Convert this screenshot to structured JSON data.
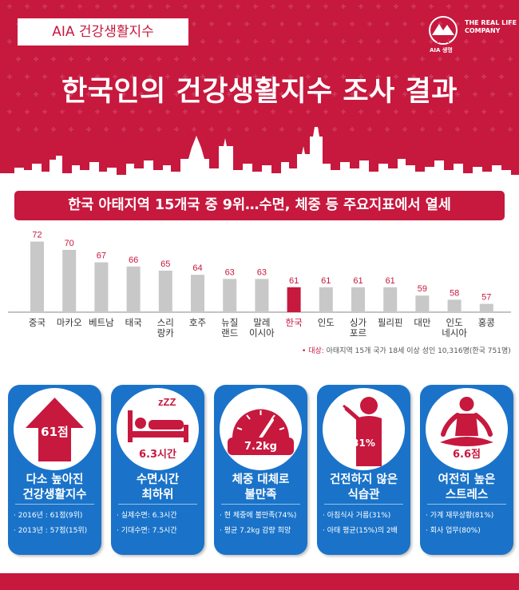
{
  "header": {
    "tag": "AIA 건강생활지수",
    "title": "한국인의 건강생활지수 조사 결과",
    "logo": {
      "tagline_1": "THE REAL LIFE",
      "tagline_2": "COMPANY",
      "sub": "AIA 생명",
      "brand": "AIA"
    },
    "colors": {
      "brand_red": "#c7183e",
      "card_blue": "#1a73c9"
    }
  },
  "subtitle": "한국 아태지역 15개국 중 9위…수면, 체중 등 주요지표에서 열세",
  "chart_data": {
    "type": "bar",
    "categories": [
      [
        "중국"
      ],
      [
        "마카오"
      ],
      [
        "베트남"
      ],
      [
        "태국"
      ],
      [
        "스리",
        "랑카"
      ],
      [
        "호주"
      ],
      [
        "뉴질",
        "랜드"
      ],
      [
        "말레",
        "이시아"
      ],
      [
        "한국"
      ],
      [
        "인도"
      ],
      [
        "싱가",
        "포르"
      ],
      [
        "필리핀"
      ],
      [
        "대만"
      ],
      [
        "인도",
        "네시아"
      ],
      [
        "홍콩"
      ]
    ],
    "values": [
      72,
      70,
      67,
      66,
      65,
      64,
      63,
      63,
      61,
      61,
      61,
      61,
      59,
      58,
      57
    ],
    "highlight_index": 8,
    "bar_color": "#c8c8c8",
    "highlight_color": "#c7183e",
    "value_label_color": "#c7183e"
  },
  "note": {
    "label": "대상:",
    "text": "아태지역 15개 국가 18세 이상 성인 10,316명(한국 751명)"
  },
  "cards": [
    {
      "icon": "arrow-up-icon",
      "value": "61점",
      "title_1": "다소 높아진",
      "title_2": "건강생활지수",
      "bullets": [
        "· 2016년 : 61점(9위)",
        "· 2013년 : 57점(15위)"
      ]
    },
    {
      "icon": "sleeping-bed-icon",
      "value": "6.3시간",
      "zzz": "zZZ",
      "title_1": "수면시간",
      "title_2": "최하위",
      "bullets": [
        "· 실제수면: 6.3시간",
        "· 기대수면: 7.5시간"
      ]
    },
    {
      "icon": "scale-gauge-icon",
      "value": "7.2kg",
      "title_1": "체중 대체로",
      "title_2": "불만족",
      "bullets": [
        "· 현 체중에 불만족(74%)",
        "· 평균 7.2kg 감량 희망"
      ]
    },
    {
      "icon": "person-eating-icon",
      "value": "31%",
      "title_1": "건전하지 않은",
      "title_2": "식습관",
      "bullets": [
        "· 아침식사 거름(31%)",
        "· 아태 평균(15%)의 2배"
      ]
    },
    {
      "icon": "meditation-icon",
      "value": "6.6점",
      "title_1": "여전히 높은",
      "title_2": "스트레스",
      "bullets": [
        "· 가계 재무상황(81%)",
        "· 회사 업무(80%)"
      ]
    }
  ]
}
